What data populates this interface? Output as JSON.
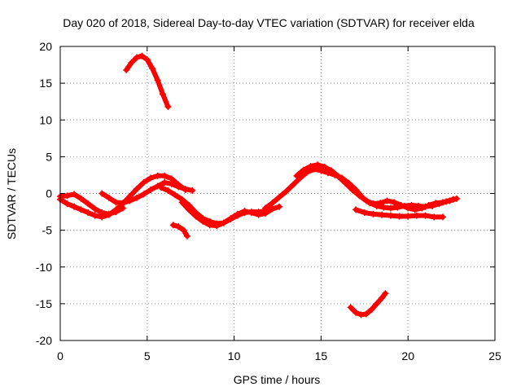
{
  "chart_data": {
    "type": "scatter",
    "title": "Day 020 of 2018, Sidereal Day-to-day VTEC variation (SDTVAR) for receiver elda",
    "xlabel": "GPS time / hours",
    "ylabel": "SDTVAR / TECUs",
    "xlim": [
      0,
      25
    ],
    "ylim": [
      -20,
      20
    ],
    "xticks": [
      0,
      5,
      10,
      15,
      20,
      25
    ],
    "yticks": [
      -20,
      -15,
      -10,
      -5,
      0,
      5,
      10,
      15,
      20
    ],
    "xtick_labels": [
      "0",
      "5",
      "10",
      "15",
      "20",
      "25"
    ],
    "ytick_labels": [
      "-20",
      "-15",
      "-10",
      "-5",
      "0",
      "5",
      "10",
      "15",
      "20"
    ],
    "grid": true,
    "marker": "+",
    "color": "#ff0000",
    "series": [
      {
        "name": "track-1",
        "x": [
          0.0,
          0.4,
          0.8,
          1.2,
          1.6,
          2.0,
          2.4,
          2.8,
          3.2,
          3.6,
          4.0,
          4.4,
          4.8,
          5.2,
          5.6,
          6.0,
          6.4,
          6.8,
          7.2
        ],
        "y": [
          -0.8,
          -1.4,
          -1.8,
          -2.2,
          -2.6,
          -3.0,
          -3.2,
          -2.9,
          -2.2,
          -1.4,
          -0.4,
          0.6,
          1.5,
          2.1,
          2.4,
          2.4,
          2.0,
          1.2,
          0.5
        ]
      },
      {
        "name": "track-2",
        "x": [
          0.0,
          0.4,
          0.8,
          1.2,
          1.6,
          2.0,
          2.4,
          2.8,
          3.2,
          3.6
        ],
        "y": [
          -0.4,
          -0.3,
          -0.1,
          -0.7,
          -1.4,
          -2.1,
          -2.6,
          -2.8,
          -2.5,
          -2.0
        ]
      },
      {
        "name": "track-3",
        "x": [
          2.4,
          2.8,
          3.2,
          3.6,
          4.0,
          4.4,
          4.8,
          5.2,
          5.6,
          6.0,
          6.4,
          6.8,
          7.2,
          7.6
        ],
        "y": [
          0.0,
          -0.6,
          -1.2,
          -1.3,
          -1.0,
          -0.6,
          -0.1,
          0.5,
          1.0,
          1.5,
          1.3,
          0.9,
          0.6,
          0.4
        ]
      },
      {
        "name": "track-4",
        "x": [
          3.8,
          4.1,
          4.4,
          4.7,
          5.0,
          5.3,
          5.6,
          5.9,
          6.2
        ],
        "y": [
          16.8,
          17.8,
          18.5,
          18.7,
          18.2,
          17.0,
          15.4,
          13.5,
          11.8
        ]
      },
      {
        "name": "track-5",
        "x": [
          6.5,
          6.8,
          7.1,
          7.3
        ],
        "y": [
          -4.3,
          -4.5,
          -5.0,
          -5.8
        ]
      },
      {
        "name": "track-6",
        "x": [
          5.8,
          6.2,
          6.6,
          7.0,
          7.4,
          7.8,
          8.2,
          8.6,
          9.0,
          9.4,
          9.8,
          10.2,
          10.6,
          11.0,
          11.4,
          11.8
        ],
        "y": [
          0.8,
          0.4,
          -0.2,
          -0.8,
          -1.6,
          -2.6,
          -3.4,
          -3.8,
          -4.1,
          -4.0,
          -3.5,
          -3.0,
          -2.6,
          -2.5,
          -2.5,
          -2.4
        ]
      },
      {
        "name": "track-7",
        "x": [
          7.0,
          7.4,
          7.8,
          8.2,
          8.6,
          9.0,
          9.4,
          9.8,
          10.2,
          10.6,
          11.0,
          11.4,
          11.8,
          12.2,
          12.6
        ],
        "y": [
          -1.2,
          -2.2,
          -3.1,
          -3.8,
          -4.3,
          -4.4,
          -4.0,
          -3.4,
          -2.8,
          -2.4,
          -2.6,
          -2.9,
          -2.7,
          -2.1,
          -1.8
        ]
      },
      {
        "name": "track-8",
        "x": [
          11.8,
          12.2,
          12.6,
          13.0,
          13.4,
          13.8,
          14.2,
          14.6,
          15.0,
          15.4,
          15.8,
          16.2,
          16.6,
          17.0,
          17.4,
          17.8,
          18.2,
          18.6,
          19.0,
          19.4,
          19.8,
          20.2,
          20.6,
          21.0,
          21.4,
          21.8,
          22.2,
          22.6
        ],
        "y": [
          -2.0,
          -1.3,
          -0.5,
          0.3,
          1.2,
          2.1,
          2.9,
          3.3,
          3.1,
          2.8,
          2.5,
          2.1,
          1.4,
          0.5,
          -0.6,
          -1.3,
          -1.7,
          -1.9,
          -2.0,
          -1.9,
          -1.7,
          -1.6,
          -1.7,
          -1.8,
          -1.7,
          -1.4,
          -1.1,
          -0.8
        ]
      },
      {
        "name": "track-9",
        "x": [
          13.6,
          14.0,
          14.4,
          14.8,
          15.2,
          15.6,
          16.0,
          16.4,
          16.8,
          17.2,
          17.6,
          18.0,
          18.4,
          18.8,
          19.2,
          19.6,
          20.0,
          20.4,
          20.8,
          21.2,
          21.6,
          22.0,
          22.4,
          22.8
        ],
        "y": [
          2.4,
          3.2,
          3.7,
          3.9,
          3.6,
          3.1,
          2.3,
          1.4,
          0.5,
          -0.3,
          -1.0,
          -1.4,
          -1.3,
          -1.0,
          -1.2,
          -1.6,
          -2.0,
          -2.2,
          -2.0,
          -1.6,
          -1.3,
          -1.2,
          -1.0,
          -0.7
        ]
      },
      {
        "name": "track-10",
        "x": [
          17.0,
          17.5,
          18.0,
          18.5,
          19.0,
          19.5,
          20.0,
          20.5,
          21.0,
          21.5,
          22.0
        ],
        "y": [
          -2.2,
          -2.6,
          -2.8,
          -2.9,
          -3.0,
          -3.1,
          -3.1,
          -3.0,
          -3.0,
          -3.2,
          -3.2
        ]
      },
      {
        "name": "track-11",
        "x": [
          16.7,
          17.0,
          17.3,
          17.6,
          17.9,
          18.2,
          18.5,
          18.7
        ],
        "y": [
          -15.5,
          -16.2,
          -16.5,
          -16.4,
          -15.8,
          -15.0,
          -14.2,
          -13.6
        ]
      }
    ]
  }
}
